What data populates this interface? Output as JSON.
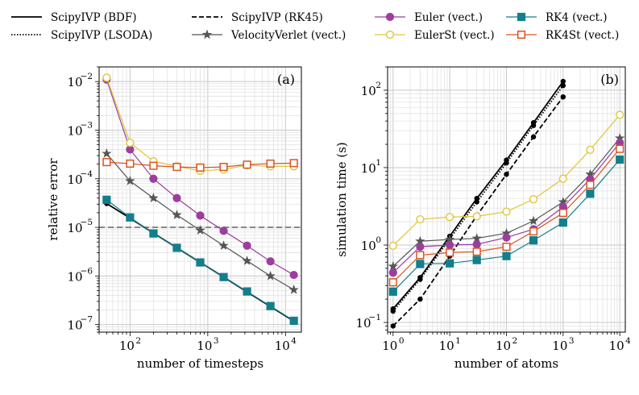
{
  "legend": {
    "items": [
      {
        "key": "bdf",
        "label": "ScipyIVP (BDF)",
        "color": "#000000",
        "dash": "solid",
        "marker": "none"
      },
      {
        "key": "lsoda",
        "label": "ScipyIVP (LSODA)",
        "color": "#000000",
        "dash": "dotted",
        "marker": "none"
      },
      {
        "key": "rk45",
        "label": "ScipyIVP (RK45)",
        "color": "#000000",
        "dash": "dashed",
        "marker": "none"
      },
      {
        "key": "vv",
        "label": "VelocityVerlet (vect.)",
        "color": "#555555",
        "dash": "solid",
        "marker": "star"
      },
      {
        "key": "euler",
        "label": "Euler (vect.)",
        "color": "#9c3e9c",
        "dash": "solid",
        "marker": "circle"
      },
      {
        "key": "eulerst",
        "label": "EulerSt (vect.)",
        "color": "#e0c53a",
        "dash": "solid",
        "marker": "circle-open"
      },
      {
        "key": "rk4",
        "label": "RK4 (vect.)",
        "color": "#137f8c",
        "dash": "solid",
        "marker": "square"
      },
      {
        "key": "rk4st",
        "label": "RK4St (vect.)",
        "color": "#d9541e",
        "dash": "solid",
        "marker": "square-open"
      }
    ]
  },
  "chart_data": [
    {
      "id": "a",
      "type": "line",
      "panel_label": "(a)",
      "xlabel": "number of timesteps",
      "ylabel": "relative error",
      "xscale": "log",
      "yscale": "log",
      "xlim": [
        40,
        16000
      ],
      "ylim": [
        7e-08,
        0.02
      ],
      "grid": true,
      "x_ticks": [
        {
          "value": 100,
          "label": "10",
          "exp": "2"
        },
        {
          "value": 1000,
          "label": "10",
          "exp": "3"
        },
        {
          "value": 10000,
          "label": "10",
          "exp": "4"
        }
      ],
      "y_ticks": [
        {
          "value": 1e-07,
          "label": "10",
          "exp": "−7"
        },
        {
          "value": 1e-06,
          "label": "10",
          "exp": "−6"
        },
        {
          "value": 1e-05,
          "label": "10",
          "exp": "−5"
        },
        {
          "value": 0.0001,
          "label": "10",
          "exp": "−4"
        },
        {
          "value": 0.001,
          "label": "10",
          "exp": "−3"
        },
        {
          "value": 0.01,
          "label": "10",
          "exp": "−2"
        }
      ],
      "hline": {
        "value": 1e-05,
        "color": "#888888",
        "dash": "dashed"
      },
      "x": [
        50,
        100,
        200,
        400,
        800,
        1600,
        3200,
        6400,
        12800
      ],
      "series": [
        {
          "key": "bdf",
          "values": [
            3.1e-05,
            1.55e-05,
            7.6e-06,
            3.8e-06,
            1.9e-06,
            9.5e-07,
            4.7e-07,
            2.35e-07,
            1.18e-07
          ]
        },
        {
          "key": "euler",
          "values": [
            0.011,
            0.0004,
            0.0001,
            4e-05,
            1.75e-05,
            8.5e-06,
            4.2e-06,
            2e-06,
            1.05e-06
          ]
        },
        {
          "key": "eulerst",
          "values": [
            0.012,
            0.00055,
            0.00023,
            0.00018,
            0.000145,
            0.000155,
            0.00019,
            0.00018,
            0.00018
          ]
        },
        {
          "key": "vv",
          "values": [
            0.00033,
            9e-05,
            4e-05,
            1.8e-05,
            8.7e-06,
            4.2e-06,
            2.05e-06,
            1e-06,
            5.2e-07
          ]
        },
        {
          "key": "rk4st",
          "values": [
            0.00022,
            0.000205,
            0.000185,
            0.000175,
            0.00017,
            0.000175,
            0.000195,
            0.000205,
            0.00021
          ]
        },
        {
          "key": "rk4",
          "values": [
            3.7e-05,
            1.6e-05,
            7.5e-06,
            3.8e-06,
            1.9e-06,
            9.5e-07,
            4.8e-07,
            2.4e-07,
            1.2e-07
          ]
        }
      ]
    },
    {
      "id": "b",
      "type": "line",
      "panel_label": "(b)",
      "xlabel": "number of atoms",
      "ylabel": "simulation time (s)",
      "xscale": "log",
      "yscale": "log",
      "xlim": [
        0.8,
        12500
      ],
      "ylim": [
        0.075,
        200
      ],
      "grid": true,
      "x_ticks": [
        {
          "value": 1,
          "label": "10",
          "exp": "0"
        },
        {
          "value": 10,
          "label": "10",
          "exp": "1"
        },
        {
          "value": 100,
          "label": "10",
          "exp": "2"
        },
        {
          "value": 1000,
          "label": "10",
          "exp": "3"
        },
        {
          "value": 10000,
          "label": "10",
          "exp": "4"
        }
      ],
      "y_ticks": [
        {
          "value": 0.1,
          "label": "10",
          "exp": "−1"
        },
        {
          "value": 1,
          "label": "10",
          "exp": "0"
        },
        {
          "value": 10,
          "label": "10",
          "exp": "1"
        },
        {
          "value": 100,
          "label": "10",
          "exp": "2"
        }
      ],
      "series": [
        {
          "key": "bdf",
          "x": [
            1,
            3,
            10,
            30,
            100,
            300,
            1000
          ],
          "values": [
            0.15,
            0.38,
            1.3,
            4.0,
            12.5,
            38,
            130
          ]
        },
        {
          "key": "lsoda",
          "x": [
            1,
            3,
            10,
            30,
            100,
            300,
            1000
          ],
          "values": [
            0.14,
            0.36,
            1.2,
            3.6,
            11.5,
            35,
            115
          ]
        },
        {
          "key": "rk45",
          "x": [
            1,
            3,
            10,
            30,
            100,
            300,
            1000
          ],
          "values": [
            0.09,
            0.2,
            0.72,
            2.4,
            8.2,
            25,
            82
          ]
        },
        {
          "key": "eulerst",
          "x": [
            1,
            3,
            10,
            30,
            100,
            300,
            1000,
            3000,
            10000
          ],
          "values": [
            0.98,
            2.15,
            2.3,
            2.35,
            2.7,
            3.9,
            7.2,
            17,
            48
          ]
        },
        {
          "key": "vv",
          "x": [
            1,
            3,
            10,
            30,
            100,
            300,
            1000,
            3000,
            10000
          ],
          "values": [
            0.53,
            1.12,
            1.18,
            1.22,
            1.42,
            2.05,
            3.6,
            8.2,
            24
          ]
        },
        {
          "key": "euler",
          "x": [
            1,
            3,
            10,
            30,
            100,
            300,
            1000,
            3000,
            10000
          ],
          "values": [
            0.44,
            0.95,
            1.0,
            1.02,
            1.25,
            1.6,
            3.1,
            7.1,
            21
          ]
        },
        {
          "key": "rk4st",
          "x": [
            1,
            3,
            10,
            30,
            100,
            300,
            1000,
            3000,
            10000
          ],
          "values": [
            0.33,
            0.74,
            0.8,
            0.82,
            0.95,
            1.5,
            2.6,
            6.0,
            17.5
          ]
        },
        {
          "key": "rk4",
          "x": [
            1,
            3,
            10,
            30,
            100,
            300,
            1000,
            3000,
            10000
          ],
          "values": [
            0.25,
            0.57,
            0.58,
            0.64,
            0.72,
            1.15,
            1.95,
            4.6,
            12.7
          ]
        }
      ]
    }
  ]
}
